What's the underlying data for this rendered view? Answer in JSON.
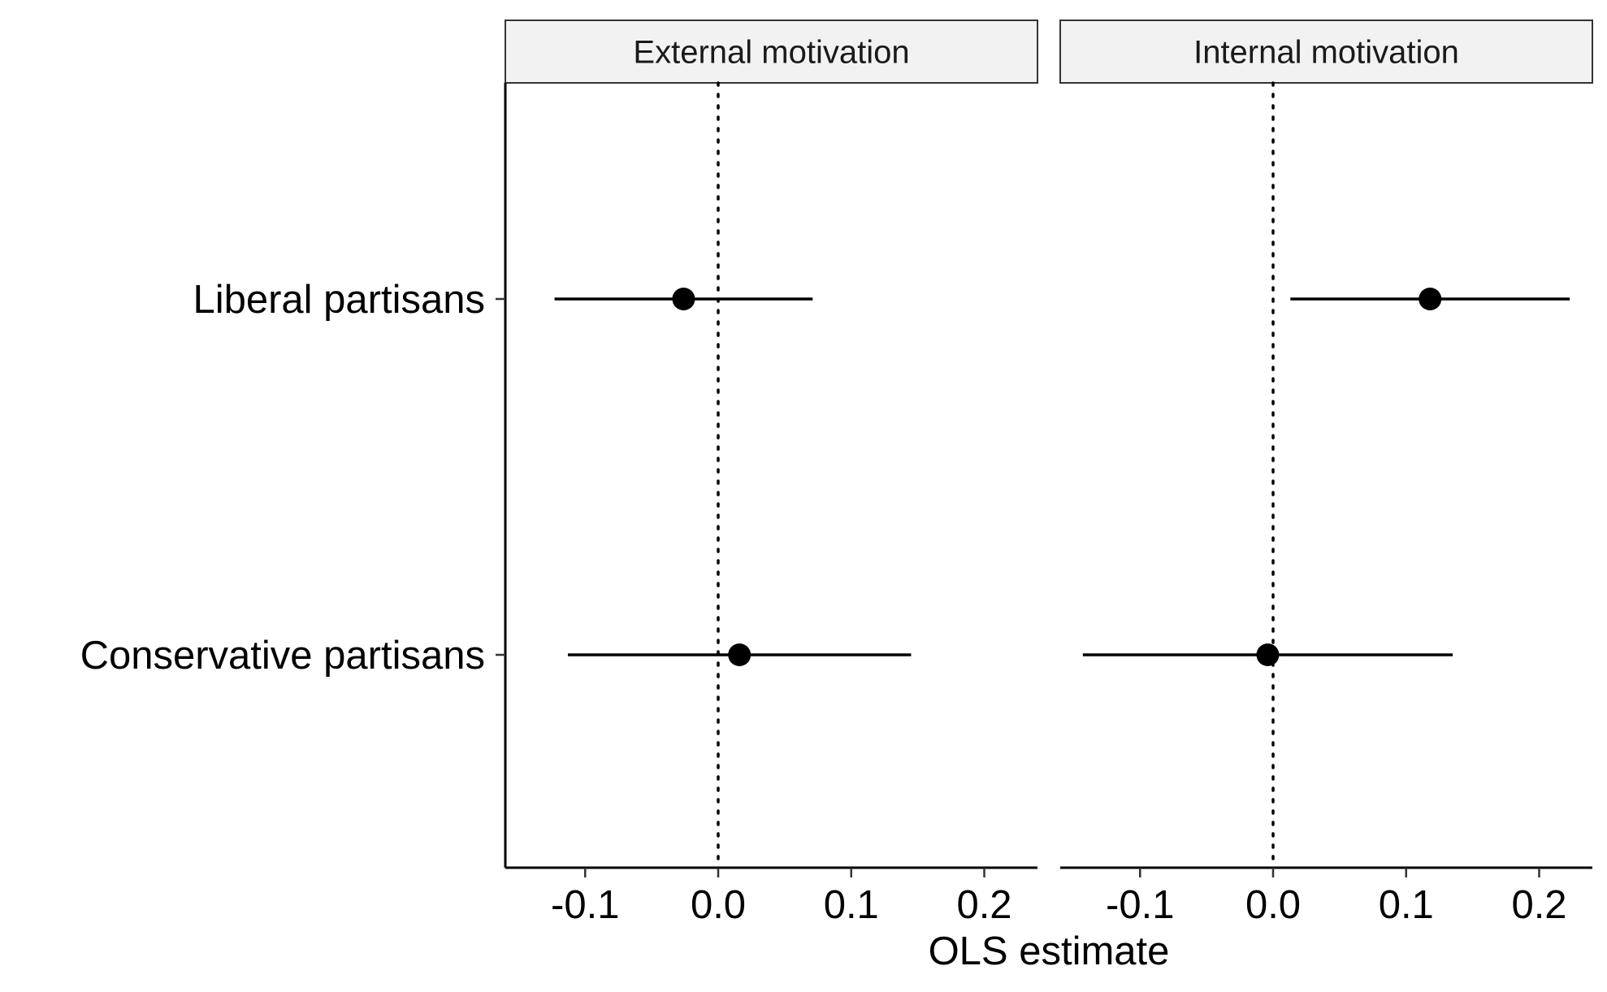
{
  "chart_data": {
    "type": "scatter",
    "subtype": "coefficient-plot with confidence intervals, faceted",
    "title": "",
    "xlabel": "OLS estimate",
    "ylabel": "",
    "xlim": [
      -0.16,
      0.24
    ],
    "x_ticks": [
      -0.1,
      0.0,
      0.1,
      0.2
    ],
    "x_tick_labels": [
      "-0.1",
      "0.0",
      "0.1",
      "0.2"
    ],
    "categories": [
      "Liberal partisans",
      "Conservative partisans"
    ],
    "reference_line": {
      "x": 0,
      "style": "dotted"
    },
    "grid": false,
    "legend": "none",
    "point_color": "#000000",
    "facets": [
      {
        "label": "External motivation",
        "points": [
          {
            "category": "Liberal partisans",
            "estimate": -0.026,
            "ci_low": -0.123,
            "ci_high": 0.071
          },
          {
            "category": "Conservative partisans",
            "estimate": 0.016,
            "ci_low": -0.113,
            "ci_high": 0.145
          }
        ]
      },
      {
        "label": "Internal motivation",
        "points": [
          {
            "category": "Liberal partisans",
            "estimate": 0.118,
            "ci_low": 0.013,
            "ci_high": 0.223
          },
          {
            "category": "Conservative partisans",
            "estimate": -0.004,
            "ci_low": -0.143,
            "ci_high": 0.135
          }
        ]
      }
    ]
  }
}
